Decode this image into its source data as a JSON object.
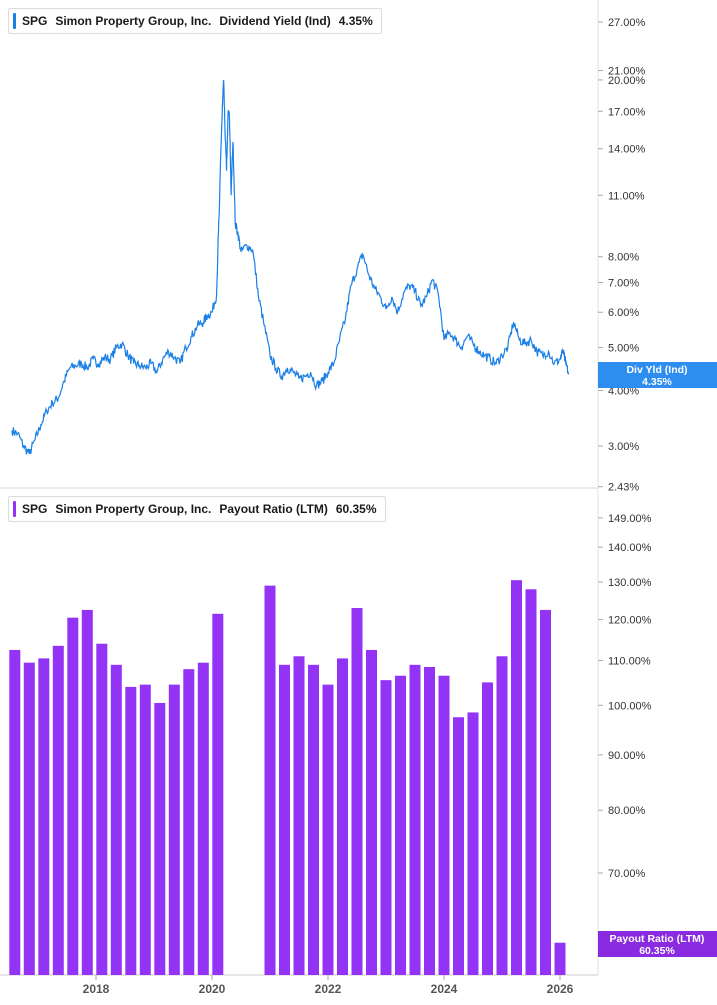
{
  "colors": {
    "yield_line": "#1a7fe6",
    "payout_bar": "#9333f5",
    "divider": "#cccccc",
    "tag_yield": "#2e8ef0",
    "tag_payout": "#8a2be2"
  },
  "chart_data": [
    {
      "type": "line",
      "legend": {
        "ticker": "SPG",
        "name": "Simon Property Group, Inc.",
        "metric": "Dividend Yield (Ind)",
        "value": "4.35%"
      },
      "y_scale": "log",
      "ylim": [
        2.43,
        30
      ],
      "y_ticks": [
        "27.00%",
        "21.00%",
        "20.00%",
        "17.00%",
        "14.00%",
        "11.00%",
        "8.00%",
        "7.00%",
        "6.00%",
        "5.00%",
        "4.00%",
        "3.00%",
        "2.43%"
      ],
      "last_tag": {
        "label": "Div Yld (Ind)",
        "value": "4.35%"
      },
      "series": [
        {
          "x": [
            2016.55,
            2016.65,
            2016.75,
            2016.85,
            2016.95,
            2017.05,
            2017.15,
            2017.25,
            2017.35,
            2017.45,
            2017.55,
            2017.65,
            2017.75,
            2017.85,
            2017.95,
            2018.05,
            2018.15,
            2018.25,
            2018.35,
            2018.45,
            2018.55,
            2018.65,
            2018.75,
            2018.85,
            2018.95,
            2019.05,
            2019.15,
            2019.25,
            2019.35,
            2019.45,
            2019.55,
            2019.65,
            2019.75,
            2019.85,
            2019.92,
            2020.0,
            2020.08,
            2020.13,
            2020.18,
            2020.2,
            2020.22,
            2020.25,
            2020.28,
            2020.3,
            2020.33,
            2020.36,
            2020.4,
            2020.45,
            2020.5,
            2020.6,
            2020.7,
            2020.8,
            2020.9,
            2021.0,
            2021.1,
            2021.2,
            2021.3,
            2021.4,
            2021.5,
            2021.6,
            2021.7,
            2021.8,
            2021.9,
            2022.0,
            2022.1,
            2022.2,
            2022.3,
            2022.4,
            2022.5,
            2022.6,
            2022.7,
            2022.8,
            2022.9,
            2023.0,
            2023.1,
            2023.2,
            2023.3,
            2023.4,
            2023.5,
            2023.6,
            2023.7,
            2023.8,
            2023.9,
            2024.0,
            2024.1,
            2024.2,
            2024.3,
            2024.4,
            2024.5,
            2024.6,
            2024.7,
            2024.8,
            2024.9,
            2025.0,
            2025.1,
            2025.2,
            2025.3,
            2025.4,
            2025.5,
            2025.6,
            2025.7,
            2025.8,
            2025.9,
            2026.0,
            2026.05,
            2026.1,
            2026.15
          ],
          "y": [
            3.25,
            3.2,
            3.0,
            2.88,
            3.1,
            3.35,
            3.6,
            3.75,
            3.85,
            4.2,
            4.5,
            4.55,
            4.6,
            4.5,
            4.7,
            4.6,
            4.75,
            4.7,
            5.0,
            5.1,
            4.8,
            4.6,
            4.55,
            4.5,
            4.6,
            4.4,
            4.7,
            4.9,
            4.75,
            4.6,
            5.0,
            5.3,
            5.6,
            5.7,
            5.9,
            6.0,
            6.6,
            10.5,
            17.5,
            20.0,
            16.0,
            12.5,
            17.0,
            16.5,
            11.0,
            14.5,
            9.5,
            9.0,
            8.2,
            8.5,
            8.3,
            6.5,
            5.6,
            4.8,
            4.5,
            4.3,
            4.5,
            4.4,
            4.25,
            4.3,
            4.4,
            4.1,
            4.2,
            4.4,
            4.6,
            5.2,
            5.8,
            6.9,
            7.5,
            8.1,
            7.3,
            6.8,
            6.5,
            6.1,
            6.5,
            6.0,
            6.6,
            6.9,
            6.7,
            6.2,
            6.5,
            7.1,
            6.6,
            5.2,
            5.4,
            5.2,
            5.0,
            5.3,
            5.1,
            4.9,
            4.8,
            4.7,
            4.6,
            4.8,
            5.0,
            5.7,
            5.2,
            5.1,
            5.2,
            4.9,
            4.8,
            4.9,
            4.6,
            4.7,
            4.9,
            4.6,
            4.35
          ]
        }
      ]
    },
    {
      "type": "bar",
      "legend": {
        "ticker": "SPG",
        "name": "Simon Property Group, Inc.",
        "metric": "Payout Ratio (LTM)",
        "value": "60.35%"
      },
      "y_scale": "log",
      "ylim": [
        63,
        154
      ],
      "y_ticks": [
        "149.00%",
        "140.00%",
        "130.00%",
        "120.00%",
        "110.00%",
        "100.00%",
        "90.00%",
        "80.00%",
        "70.00%"
      ],
      "last_tag": {
        "label": "Payout Ratio (LTM)",
        "value": "60.35%"
      },
      "x": [
        2016.6,
        2016.85,
        2017.1,
        2017.35,
        2017.6,
        2017.85,
        2018.1,
        2018.35,
        2018.6,
        2018.85,
        2019.1,
        2019.35,
        2019.6,
        2019.85,
        2020.1,
        2021.0,
        2021.25,
        2021.5,
        2021.75,
        2022.0,
        2022.25,
        2022.5,
        2022.75,
        2023.0,
        2023.25,
        2023.5,
        2023.75,
        2024.0,
        2024.25,
        2024.5,
        2024.75,
        2025.0,
        2025.25,
        2025.5,
        2025.75,
        2026.0
      ],
      "values": [
        112.5,
        109.5,
        110.5,
        113.5,
        120.5,
        122.5,
        114.0,
        109.0,
        104.0,
        104.5,
        100.5,
        104.5,
        108.0,
        109.5,
        121.5,
        129.0,
        109.0,
        111.0,
        109.0,
        104.5,
        110.5,
        123.0,
        112.5,
        105.5,
        106.5,
        109.0,
        108.5,
        106.5,
        97.5,
        98.5,
        105.0,
        111.0,
        130.5,
        128.0,
        122.5,
        60.35
      ]
    }
  ],
  "x_axis": {
    "tick_labels": [
      "2018",
      "2020",
      "2022",
      "2024",
      "2026"
    ],
    "tick_values": [
      2018,
      2020,
      2022,
      2024,
      2026
    ]
  }
}
